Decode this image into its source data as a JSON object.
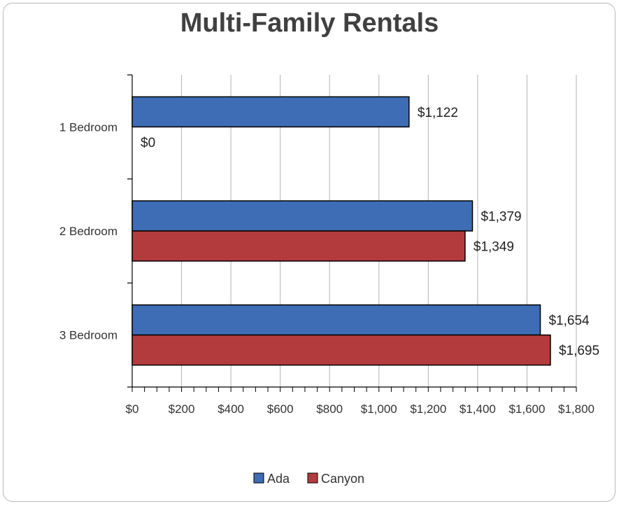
{
  "chart_data": {
    "type": "bar",
    "orientation": "horizontal",
    "title": "Multi-Family Rentals",
    "categories": [
      "1 Bedroom",
      "2 Bedroom",
      "3 Bedroom"
    ],
    "series": [
      {
        "name": "Ada",
        "color": "#3e6db5",
        "values": [
          1122,
          1379,
          1654
        ],
        "labels": [
          "$1,122",
          "$1,379",
          "$1,654"
        ]
      },
      {
        "name": "Canyon",
        "color": "#b33b3d",
        "values": [
          0,
          1349,
          1695
        ],
        "labels": [
          "$0",
          "$1,349",
          "$1,695"
        ]
      }
    ],
    "xlim": [
      0,
      1800
    ],
    "xticks": [
      0,
      200,
      400,
      600,
      800,
      1000,
      1200,
      1400,
      1600,
      1800
    ],
    "xtick_labels": [
      "$0",
      "$200",
      "$400",
      "$600",
      "$800",
      "$1,000",
      "$1,200",
      "$1,400",
      "$1,600",
      "$1,800"
    ],
    "grid": "vertical",
    "legend_position": "bottom"
  }
}
